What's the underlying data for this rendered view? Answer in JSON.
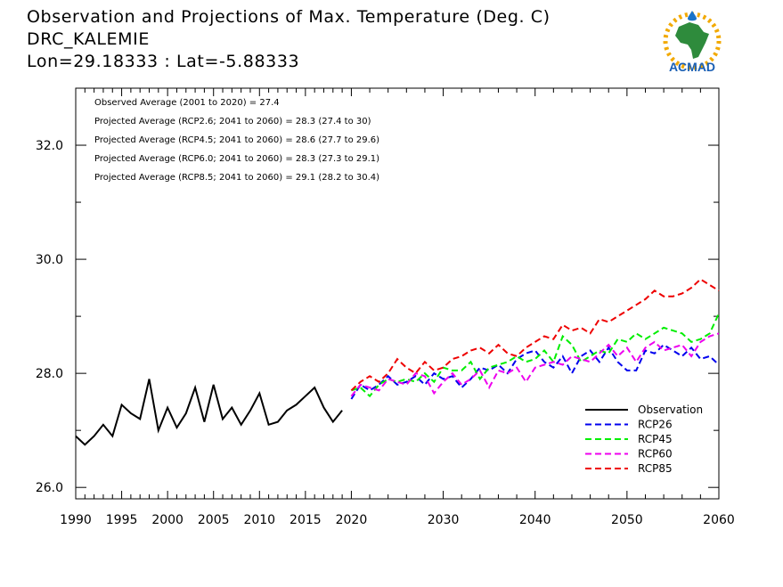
{
  "header": {
    "title_line1": "Observation and Projections of Max. Temperature (Deg. C)",
    "title_line2": "DRC_KALEMIE",
    "title_line3": "Lon=29.18333 : Lat=-5.88333"
  },
  "logo": {
    "text": "ACMAD"
  },
  "chart_data": {
    "type": "line",
    "title": "Observation and Projections of Max. Temperature (Deg. C)",
    "ylim": [
      25.8,
      33.0
    ],
    "xlim": [
      1990,
      2060
    ],
    "grid": false,
    "legend_position": "bottom-right",
    "x_ticks": [
      {
        "value": 1990,
        "label": "1990"
      },
      {
        "value": 1995,
        "label": "1995"
      },
      {
        "value": 2000,
        "label": "2000"
      },
      {
        "value": 2005,
        "label": "2005"
      },
      {
        "value": 2010,
        "label": "2010"
      },
      {
        "value": 2015,
        "label": "2015"
      },
      {
        "value": 2020,
        "label": "2020"
      },
      {
        "value": 2030,
        "label": "2030"
      },
      {
        "value": 2040,
        "label": "2040"
      },
      {
        "value": 2050,
        "label": "2050"
      },
      {
        "value": 2060,
        "label": "2060"
      }
    ],
    "y_ticks": [
      {
        "value": 26.0,
        "label": "26.0"
      },
      {
        "value": 28.0,
        "label": "28.0"
      },
      {
        "value": 30.0,
        "label": "30.0"
      },
      {
        "value": 32.0,
        "label": "32.0"
      }
    ],
    "annotations": [
      "Observed Average (2001 to 2020) = 27.4",
      "Projected Average (RCP2.6; 2041 to 2060) = 28.3 (27.4 to 30)",
      "Projected Average (RCP4.5; 2041 to 2060) = 28.6 (27.7 to 29.6)",
      "Projected Average (RCP6.0; 2041 to 2060) = 28.3 (27.3 to 29.1)",
      "Projected Average (RCP8.5; 2041 to 2060) = 29.1 (28.2 to 30.4)"
    ],
    "series": [
      {
        "name": "Observation",
        "color": "#000000",
        "dashed": false,
        "x": [
          1990,
          1991,
          1992,
          1993,
          1994,
          1995,
          1996,
          1997,
          1998,
          1999,
          2000,
          2001,
          2002,
          2003,
          2004,
          2005,
          2006,
          2007,
          2008,
          2009,
          2010,
          2011,
          2012,
          2013,
          2014,
          2015,
          2016,
          2017,
          2018,
          2019
        ],
        "y": [
          26.9,
          26.75,
          26.9,
          27.1,
          26.9,
          27.45,
          27.3,
          27.2,
          27.9,
          27.0,
          27.4,
          27.05,
          27.3,
          27.75,
          27.15,
          27.8,
          27.2,
          27.4,
          27.1,
          27.35,
          27.65,
          27.1,
          27.15,
          27.35,
          27.45,
          27.6,
          27.75,
          27.4,
          27.15,
          27.35
        ]
      },
      {
        "name": "RCP26",
        "color": "#0000ee",
        "dashed": true,
        "x": [
          2020,
          2021,
          2022,
          2023,
          2024,
          2025,
          2026,
          2027,
          2028,
          2029,
          2030,
          2031,
          2032,
          2033,
          2034,
          2035,
          2036,
          2037,
          2038,
          2039,
          2040,
          2041,
          2042,
          2043,
          2044,
          2045,
          2046,
          2047,
          2048,
          2049,
          2050,
          2051,
          2052,
          2053,
          2054,
          2055,
          2056,
          2057,
          2058,
          2059,
          2060
        ],
        "y": [
          27.55,
          27.8,
          27.7,
          27.8,
          27.95,
          27.8,
          27.85,
          27.95,
          27.8,
          28.0,
          27.9,
          27.95,
          27.75,
          27.9,
          28.1,
          28.05,
          28.15,
          28.0,
          28.25,
          28.35,
          28.4,
          28.2,
          28.1,
          28.3,
          28.0,
          28.3,
          28.4,
          28.2,
          28.45,
          28.2,
          28.05,
          28.05,
          28.4,
          28.35,
          28.5,
          28.4,
          28.3,
          28.45,
          28.25,
          28.3,
          28.15
        ]
      },
      {
        "name": "RCP45",
        "color": "#00ee00",
        "dashed": true,
        "x": [
          2020,
          2021,
          2022,
          2023,
          2024,
          2025,
          2026,
          2027,
          2028,
          2029,
          2030,
          2031,
          2032,
          2033,
          2034,
          2035,
          2036,
          2037,
          2038,
          2039,
          2040,
          2041,
          2042,
          2043,
          2044,
          2045,
          2046,
          2047,
          2048,
          2049,
          2050,
          2051,
          2052,
          2053,
          2054,
          2055,
          2056,
          2057,
          2058,
          2059,
          2060
        ],
        "y": [
          27.7,
          27.75,
          27.6,
          27.8,
          27.9,
          27.85,
          27.9,
          27.85,
          28.0,
          27.85,
          28.1,
          28.05,
          28.05,
          28.2,
          27.9,
          28.1,
          28.15,
          28.2,
          28.3,
          28.2,
          28.25,
          28.4,
          28.2,
          28.65,
          28.5,
          28.2,
          28.3,
          28.4,
          28.35,
          28.6,
          28.55,
          28.7,
          28.6,
          28.7,
          28.8,
          28.75,
          28.7,
          28.55,
          28.6,
          28.7,
          29.05
        ]
      },
      {
        "name": "RCP60",
        "color": "#ee00ee",
        "dashed": true,
        "x": [
          2020,
          2021,
          2022,
          2023,
          2024,
          2025,
          2026,
          2027,
          2028,
          2029,
          2030,
          2031,
          2032,
          2033,
          2034,
          2035,
          2036,
          2037,
          2038,
          2039,
          2040,
          2041,
          2042,
          2043,
          2044,
          2045,
          2046,
          2047,
          2048,
          2049,
          2050,
          2051,
          2052,
          2053,
          2054,
          2055,
          2056,
          2057,
          2058,
          2059,
          2060
        ],
        "y": [
          27.6,
          27.8,
          27.75,
          27.7,
          27.9,
          27.85,
          27.8,
          28.0,
          27.95,
          27.65,
          27.85,
          28.0,
          27.8,
          27.9,
          28.05,
          27.75,
          28.05,
          28.0,
          28.1,
          27.85,
          28.1,
          28.15,
          28.2,
          28.15,
          28.3,
          28.25,
          28.2,
          28.35,
          28.5,
          28.3,
          28.45,
          28.2,
          28.45,
          28.55,
          28.4,
          28.45,
          28.5,
          28.3,
          28.55,
          28.65,
          28.7
        ]
      },
      {
        "name": "RCP85",
        "color": "#ee0000",
        "dashed": true,
        "x": [
          2020,
          2021,
          2022,
          2023,
          2024,
          2025,
          2026,
          2027,
          2028,
          2029,
          2030,
          2031,
          2032,
          2033,
          2034,
          2035,
          2036,
          2037,
          2038,
          2039,
          2040,
          2041,
          2042,
          2043,
          2044,
          2045,
          2046,
          2047,
          2048,
          2049,
          2050,
          2051,
          2052,
          2053,
          2054,
          2055,
          2056,
          2057,
          2058,
          2059,
          2060
        ],
        "y": [
          27.7,
          27.85,
          27.95,
          27.85,
          28.0,
          28.25,
          28.1,
          28.0,
          28.2,
          28.05,
          28.1,
          28.25,
          28.3,
          28.4,
          28.45,
          28.35,
          28.5,
          28.35,
          28.3,
          28.45,
          28.55,
          28.65,
          28.6,
          28.85,
          28.75,
          28.8,
          28.7,
          28.95,
          28.9,
          29.0,
          29.1,
          29.2,
          29.3,
          29.45,
          29.35,
          29.35,
          29.4,
          29.5,
          29.65,
          29.55,
          29.45
        ]
      }
    ]
  }
}
